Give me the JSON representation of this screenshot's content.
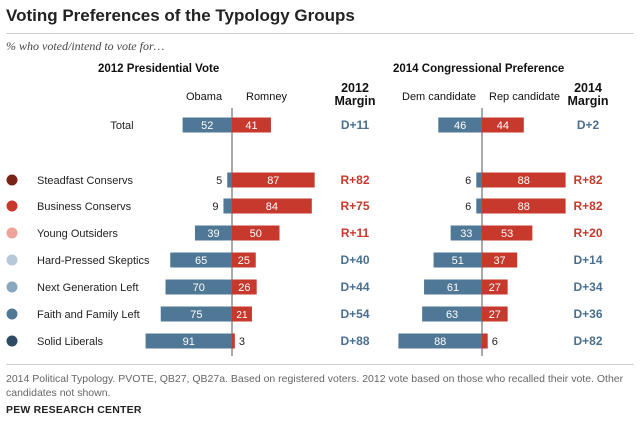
{
  "title": "Voting Preferences of the Typology Groups",
  "subtitle": "% who voted/intend to vote for…",
  "left_section": {
    "title": "2012 Presidential Vote",
    "col_dem": "Obama",
    "col_rep": "Romney",
    "margin_header": [
      "2012",
      "Margin"
    ]
  },
  "right_section": {
    "title": "2014 Congressional Preference",
    "col_dem": "Dem candidate",
    "col_rep": "Rep candidate",
    "margin_header": [
      "2014",
      "Margin"
    ]
  },
  "colors": {
    "dem_bar": "#4f7796",
    "rep_bar": "#c6392c",
    "dem_text": "#4a6f8f",
    "rep_text": "#c6392c"
  },
  "chart_data": [
    {
      "type": "bar",
      "title": "2012 Presidential Vote",
      "categories": [
        "Total",
        "Steadfast Conservs",
        "Business Conservs",
        "Young Outsiders",
        "Hard-Pressed Skeptics",
        "Next Generation Left",
        "Faith and Family Left",
        "Solid Liberals"
      ],
      "series": [
        {
          "name": "Obama",
          "values": [
            52,
            5,
            9,
            39,
            65,
            70,
            75,
            91
          ]
        },
        {
          "name": "Romney",
          "values": [
            41,
            87,
            84,
            50,
            25,
            26,
            21,
            3
          ]
        }
      ],
      "margin_label": "2012 Margin",
      "margins": [
        "D+11",
        "R+82",
        "R+75",
        "R+11",
        "D+40",
        "D+44",
        "D+54",
        "D+88"
      ]
    },
    {
      "type": "bar",
      "title": "2014 Congressional Preference",
      "categories": [
        "Total",
        "Steadfast Conservs",
        "Business Conservs",
        "Young Outsiders",
        "Hard-Pressed Skeptics",
        "Next Generation Left",
        "Faith and Family Left",
        "Solid Liberals"
      ],
      "series": [
        {
          "name": "Dem candidate",
          "values": [
            46,
            6,
            6,
            33,
            51,
            61,
            63,
            88
          ]
        },
        {
          "name": "Rep candidate",
          "values": [
            44,
            88,
            88,
            53,
            37,
            27,
            27,
            6
          ]
        }
      ],
      "margin_label": "2014 Margin",
      "margins": [
        "D+2",
        "R+82",
        "R+82",
        "R+20",
        "D+14",
        "D+34",
        "D+36",
        "D+82"
      ]
    }
  ],
  "group_dots": [
    "#7a2418",
    "#c6392c",
    "#eea39a",
    "#b7c8d8",
    "#8aa7c0",
    "#4f7796",
    "#2f4b63"
  ],
  "note": "2014 Political Typology. PVOTE, QB27, QB27a. Based on registered voters. 2012 vote based on those who recalled their vote. Other candidates not shown.",
  "source": "PEW RESEARCH CENTER"
}
